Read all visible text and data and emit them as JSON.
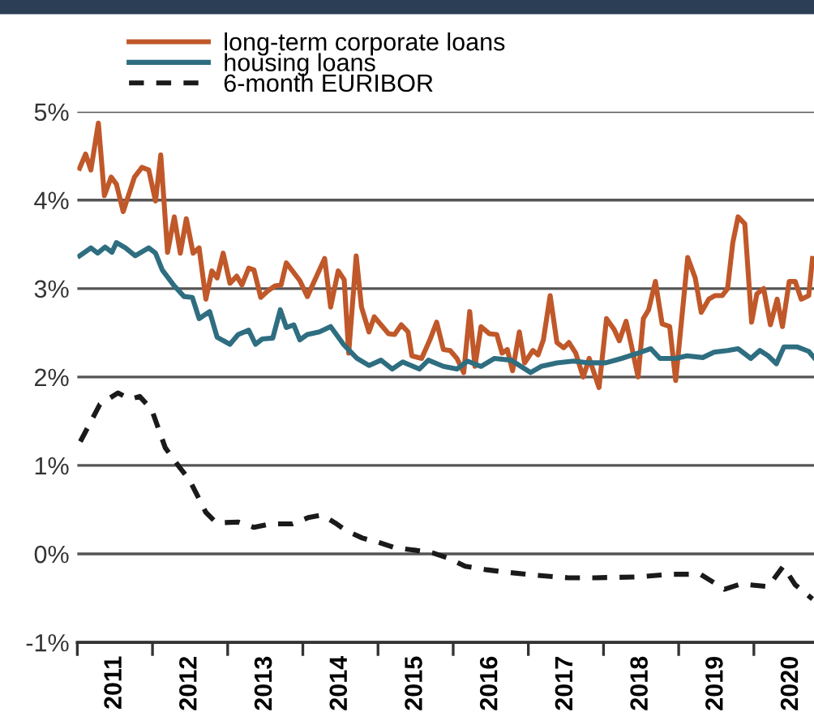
{
  "chart_data": {
    "type": "line",
    "series": [
      {
        "name": "long-term corporate loans",
        "color": "#c0582a",
        "x": [
          2011.03,
          2011.11,
          2011.18,
          2011.28,
          2011.36,
          2011.45,
          2011.52,
          2011.61,
          2011.76,
          2011.86,
          2011.95,
          2012.04,
          2012.11,
          2012.2,
          2012.29,
          2012.37,
          2012.45,
          2012.54,
          2012.62,
          2012.71,
          2012.79,
          2012.86,
          2012.94,
          2013.03,
          2013.12,
          2013.19,
          2013.28,
          2013.35,
          2013.44,
          2013.53,
          2013.63,
          2013.71,
          2013.78,
          2013.96,
          2014.06,
          2014.29,
          2014.37,
          2014.47,
          2014.55,
          2014.61,
          2014.71,
          2014.78,
          2014.88,
          2014.95,
          2015.14,
          2015.22,
          2015.31,
          2015.4,
          2015.45,
          2015.58,
          2015.69,
          2015.78,
          2015.87,
          2015.96,
          2016.05,
          2016.14,
          2016.22,
          2016.29,
          2016.37,
          2016.48,
          2016.58,
          2016.65,
          2016.72,
          2016.79,
          2016.88,
          2016.95,
          2017.06,
          2017.13,
          2017.2,
          2017.29,
          2017.38,
          2017.47,
          2017.54,
          2017.63,
          2017.73,
          2017.81,
          2017.94,
          2018.04,
          2018.14,
          2018.21,
          2018.3,
          2018.37,
          2018.46,
          2018.53,
          2018.6,
          2018.69,
          2018.78,
          2018.88,
          2018.96,
          2019.12,
          2019.22,
          2019.3,
          2019.4,
          2019.48,
          2019.58,
          2019.65,
          2019.72,
          2019.79,
          2019.88,
          2019.97,
          2020.04,
          2020.13,
          2020.22,
          2020.31,
          2020.38,
          2020.47,
          2020.55,
          2020.63,
          2020.73,
          2020.78
        ],
        "values": [
          4.36,
          4.52,
          4.34,
          4.87,
          4.05,
          4.26,
          4.18,
          3.87,
          4.26,
          4.37,
          4.34,
          3.99,
          4.51,
          3.41,
          3.81,
          3.4,
          3.79,
          3.4,
          3.46,
          2.88,
          3.2,
          3.12,
          3.4,
          3.06,
          3.14,
          3.04,
          3.23,
          3.21,
          2.9,
          2.97,
          3.03,
          3.04,
          3.29,
          3.09,
          2.91,
          3.34,
          2.79,
          3.2,
          3.1,
          2.27,
          3.37,
          2.79,
          2.51,
          2.68,
          2.49,
          2.48,
          2.59,
          2.51,
          2.24,
          2.21,
          2.42,
          2.62,
          2.31,
          2.3,
          2.21,
          2.05,
          2.74,
          2.12,
          2.57,
          2.49,
          2.48,
          2.27,
          2.31,
          2.07,
          2.51,
          2.16,
          2.3,
          2.25,
          2.42,
          2.92,
          2.39,
          2.33,
          2.39,
          2.27,
          2.0,
          2.21,
          1.88,
          2.66,
          2.54,
          2.41,
          2.63,
          2.36,
          2.0,
          2.66,
          2.76,
          3.08,
          2.6,
          2.57,
          1.96,
          3.35,
          3.12,
          2.73,
          2.88,
          2.92,
          2.92,
          3.0,
          3.52,
          3.81,
          3.73,
          2.62,
          2.94,
          3.0,
          2.59,
          2.88,
          2.57,
          3.08,
          3.08,
          2.88,
          2.92,
          3.34
        ]
      },
      {
        "name": "housing loans",
        "color": "#2e6e80",
        "x": [
          2011.03,
          2011.18,
          2011.27,
          2011.37,
          2011.46,
          2011.52,
          2011.64,
          2011.77,
          2011.95,
          2012.04,
          2012.13,
          2012.29,
          2012.42,
          2012.53,
          2012.62,
          2012.76,
          2012.86,
          2013.03,
          2013.14,
          2013.28,
          2013.37,
          2013.46,
          2013.6,
          2013.7,
          2013.78,
          2013.88,
          2013.96,
          2014.06,
          2014.22,
          2014.37,
          2014.54,
          2014.72,
          2014.88,
          2015.04,
          2015.19,
          2015.33,
          2015.55,
          2015.67,
          2015.87,
          2016.05,
          2016.19,
          2016.37,
          2016.55,
          2016.77,
          2017.03,
          2017.17,
          2017.38,
          2017.6,
          2017.81,
          2018.03,
          2018.24,
          2018.46,
          2018.63,
          2018.75,
          2018.96,
          2019.11,
          2019.32,
          2019.47,
          2019.65,
          2019.79,
          2019.96,
          2020.08,
          2020.19,
          2020.3,
          2020.4,
          2020.58,
          2020.73,
          2020.8
        ],
        "values": [
          3.37,
          3.46,
          3.4,
          3.47,
          3.41,
          3.52,
          3.46,
          3.37,
          3.46,
          3.4,
          3.21,
          3.03,
          2.91,
          2.9,
          2.66,
          2.74,
          2.45,
          2.37,
          2.48,
          2.53,
          2.37,
          2.43,
          2.44,
          2.76,
          2.56,
          2.59,
          2.42,
          2.48,
          2.51,
          2.57,
          2.37,
          2.21,
          2.13,
          2.19,
          2.09,
          2.17,
          2.09,
          2.19,
          2.12,
          2.09,
          2.18,
          2.12,
          2.21,
          2.19,
          2.05,
          2.12,
          2.16,
          2.18,
          2.16,
          2.16,
          2.21,
          2.27,
          2.32,
          2.21,
          2.21,
          2.24,
          2.22,
          2.28,
          2.3,
          2.32,
          2.21,
          2.3,
          2.24,
          2.15,
          2.34,
          2.34,
          2.29,
          2.22
        ]
      },
      {
        "name": "6-month EURIBOR",
        "color": "#1a1a1a",
        "line_style": "dashed",
        "x": [
          2011.04,
          2011.3,
          2011.54,
          2011.7,
          2011.83,
          2011.99,
          2012.17,
          2012.35,
          2012.49,
          2012.71,
          2012.85,
          2013.14,
          2013.35,
          2013.57,
          2013.86,
          2014.07,
          2014.25,
          2014.43,
          2014.58,
          2014.79,
          2015.01,
          2015.22,
          2015.51,
          2015.73,
          2015.94,
          2016.16,
          2016.45,
          2016.74,
          2017.09,
          2017.53,
          2017.88,
          2018.46,
          2018.89,
          2019.29,
          2019.61,
          2019.83,
          2020.19,
          2020.39,
          2020.55,
          2020.78
        ],
        "values": [
          1.27,
          1.69,
          1.82,
          1.75,
          1.78,
          1.63,
          1.2,
          0.99,
          0.84,
          0.47,
          0.35,
          0.36,
          0.3,
          0.34,
          0.34,
          0.41,
          0.44,
          0.35,
          0.26,
          0.18,
          0.13,
          0.07,
          0.04,
          0.01,
          -0.05,
          -0.14,
          -0.18,
          -0.21,
          -0.24,
          -0.27,
          -0.27,
          -0.26,
          -0.23,
          -0.23,
          -0.4,
          -0.34,
          -0.37,
          -0.14,
          -0.35,
          -0.51
        ]
      }
    ],
    "xlim": [
      2011,
      2020.8
    ],
    "xticks": [
      {
        "value": 2011,
        "label": null
      },
      {
        "value": 2011.5,
        "label": "2011"
      },
      {
        "value": 2012,
        "label": null
      },
      {
        "value": 2012.5,
        "label": "2012"
      },
      {
        "value": 2013,
        "label": null
      },
      {
        "value": 2013.5,
        "label": "2013"
      },
      {
        "value": 2014,
        "label": null
      },
      {
        "value": 2014.5,
        "label": "2014"
      },
      {
        "value": 2015,
        "label": null
      },
      {
        "value": 2015.5,
        "label": "2015"
      },
      {
        "value": 2016,
        "label": null
      },
      {
        "value": 2016.5,
        "label": "2016"
      },
      {
        "value": 2017,
        "label": null
      },
      {
        "value": 2017.5,
        "label": "2017"
      },
      {
        "value": 2018,
        "label": null
      },
      {
        "value": 2018.5,
        "label": "2018"
      },
      {
        "value": 2019,
        "label": null
      },
      {
        "value": 2019.5,
        "label": "2019"
      },
      {
        "value": 2020,
        "label": null
      },
      {
        "value": 2020.5,
        "label": "2020"
      }
    ],
    "ylim": [
      -1,
      5
    ],
    "yticks": [
      {
        "value": -1,
        "label": "-1%"
      },
      {
        "value": 0,
        "label": "0%"
      },
      {
        "value": 1,
        "label": "1%"
      },
      {
        "value": 2,
        "label": "2%"
      },
      {
        "value": 3,
        "label": "3%"
      },
      {
        "value": 4,
        "label": "4%"
      },
      {
        "value": 5,
        "label": "5%"
      }
    ],
    "grid": "y",
    "legend": "top left",
    "line_style": "solid",
    "marker": "none"
  }
}
